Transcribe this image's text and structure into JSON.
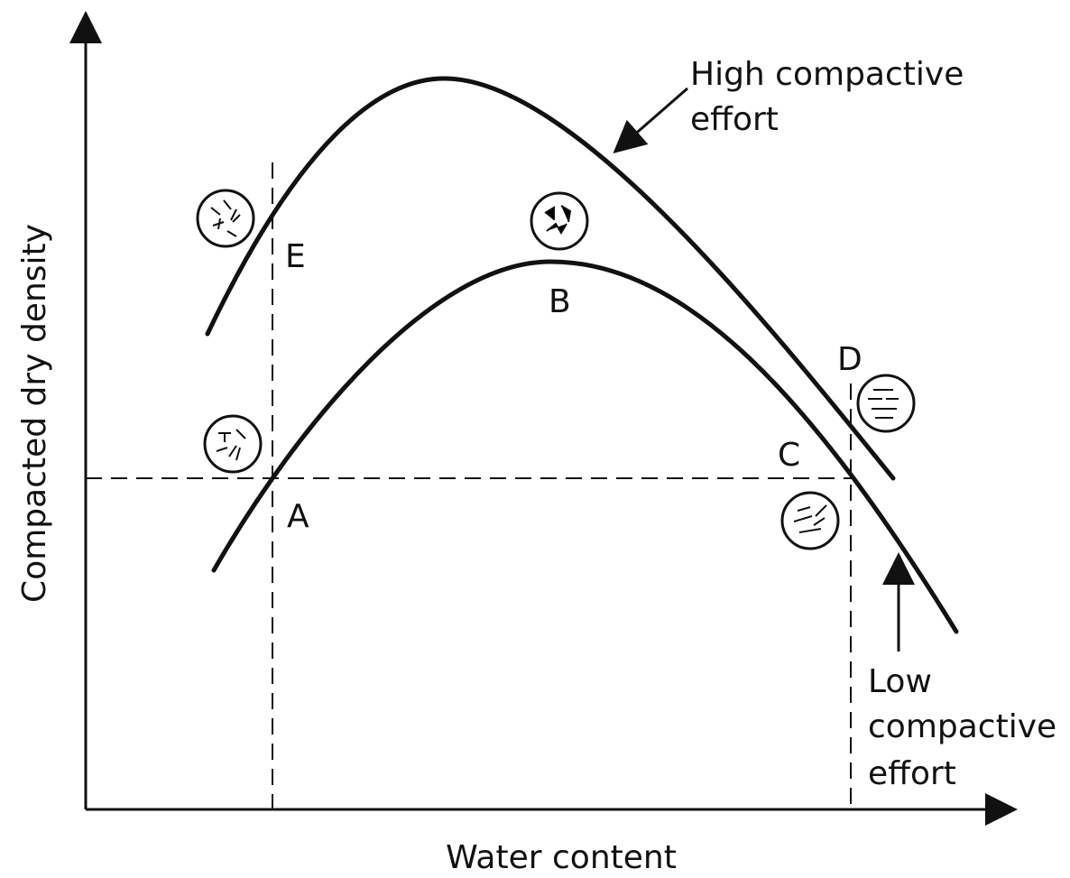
{
  "axes": {
    "y_label": "Compacted dry density",
    "x_label": "Water content"
  },
  "points": {
    "A": "A",
    "B": "B",
    "C": "C",
    "D": "D",
    "E": "E"
  },
  "curves": {
    "high": {
      "label_lines": [
        "High compactive",
        "effort"
      ]
    },
    "low": {
      "label_lines": [
        "Low",
        "compactive",
        "effort"
      ]
    }
  }
}
